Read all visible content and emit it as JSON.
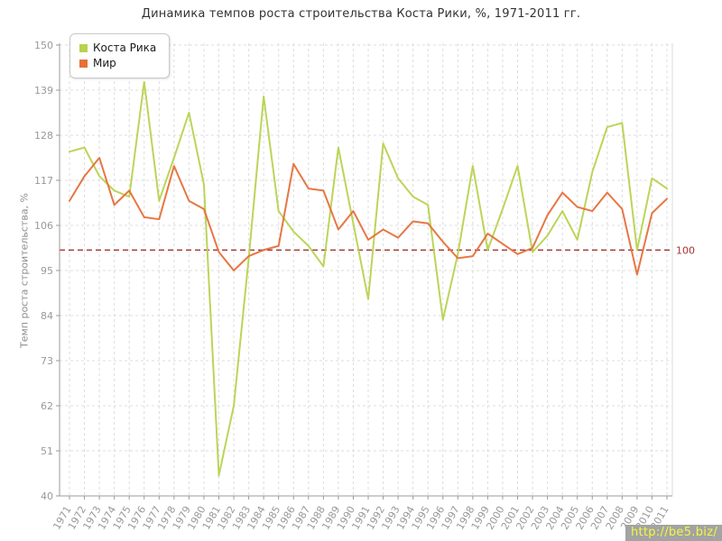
{
  "title": "Динамика темпов роста строительства Коста Рики, %, 1971-2011 гг.",
  "watermark": "http://be5.biz/",
  "legend": [
    {
      "label": "Коста Рика",
      "color": "#b7d34f"
    },
    {
      "label": "Мир",
      "color": "#e5703a"
    }
  ],
  "colors": {
    "grid": "#dcdcdc",
    "axis": "#9a9a9a",
    "tick_text": "#999999",
    "baseline": "#a53434",
    "plot_border": "#dddddd"
  },
  "chart_data": {
    "type": "line",
    "title": "Динамика темпов роста строительства Коста Рики, %, 1971-2011 гг.",
    "xlabel": "",
    "ylabel": "Темп роста строительства, %",
    "ylim": [
      40,
      150
    ],
    "yticks": [
      40,
      51,
      62,
      73,
      84,
      95,
      106,
      117,
      128,
      139,
      150
    ],
    "grid": true,
    "legend_position": "top-left",
    "baseline": {
      "value": 100,
      "label": "100"
    },
    "x": [
      1971,
      1972,
      1973,
      1974,
      1975,
      1976,
      1977,
      1978,
      1979,
      1980,
      1981,
      1982,
      1983,
      1984,
      1985,
      1986,
      1987,
      1988,
      1989,
      1990,
      1991,
      1992,
      1993,
      1994,
      1995,
      1996,
      1997,
      1998,
      1999,
      2000,
      2001,
      2002,
      2003,
      2004,
      2005,
      2006,
      2007,
      2008,
      2009,
      2010,
      2011
    ],
    "series": [
      {
        "name": "Коста Рика",
        "color": "#b7d34f",
        "values": [
          124,
          125,
          118,
          114.5,
          113,
          141,
          112,
          122.5,
          133.5,
          116,
          45,
          62,
          98,
          137.5,
          109.5,
          104.5,
          101,
          96,
          125,
          106.5,
          88,
          126,
          117.5,
          113,
          111,
          83,
          99,
          120.5,
          100,
          110,
          120.5,
          99.5,
          103.5,
          109.5,
          102.5,
          119,
          130,
          131,
          100,
          117.5,
          115
        ]
      },
      {
        "name": "Мир",
        "color": "#e5703a",
        "values": [
          112,
          118,
          122.5,
          111,
          114.5,
          108,
          107.5,
          120.5,
          112,
          110,
          99.5,
          95,
          98.5,
          100,
          101,
          121,
          115,
          114.5,
          105,
          109.5,
          102.5,
          105,
          103,
          107,
          106.5,
          102,
          98,
          98.5,
          104,
          101.5,
          99,
          100.5,
          108.5,
          114,
          110.5,
          109.5,
          114,
          110,
          94,
          109,
          112.5
        ]
      }
    ]
  }
}
